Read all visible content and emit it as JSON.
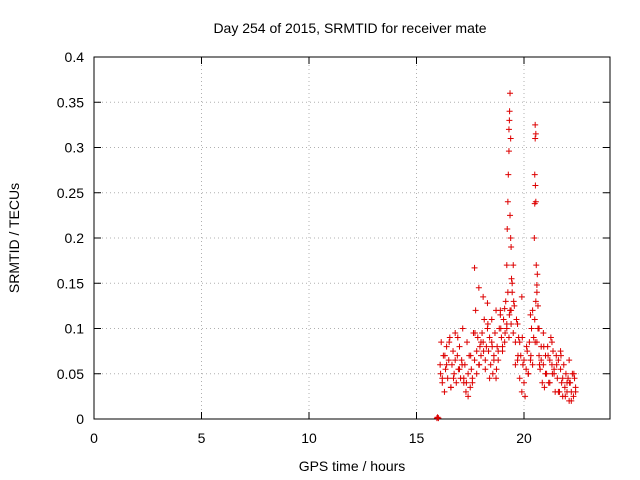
{
  "chart_data": {
    "type": "scatter",
    "title": "Day 254 of 2015, SRMTID for receiver mate",
    "xlabel": "GPS time / hours",
    "ylabel": "SRMTID / TECUs",
    "xlim": [
      0,
      24
    ],
    "ylim": [
      0,
      0.4
    ],
    "x_ticks": [
      0,
      5,
      10,
      15,
      20
    ],
    "x_tick_labels": [
      "0",
      "5",
      "10",
      "15",
      "20"
    ],
    "y_ticks": [
      0,
      0.05,
      0.1,
      0.15,
      0.2,
      0.25,
      0.3,
      0.35,
      0.4
    ],
    "y_tick_labels": [
      "0",
      "0.05",
      "0.1",
      "0.15",
      "0.2",
      "0.25",
      "0.3",
      "0.35",
      "0.4"
    ],
    "grid": true,
    "marker": "+",
    "colors": {
      "series": "#dd0000",
      "grid": "#b0b0b0",
      "axis": "#000000"
    },
    "series": [
      {
        "name": "SRMTID",
        "x": [
          15.95,
          15.98,
          16.02,
          16.1,
          16.15,
          16.2,
          16.25,
          16.3,
          16.35,
          16.4,
          16.45,
          16.5,
          16.55,
          16.6,
          16.65,
          16.7,
          16.75,
          16.8,
          16.85,
          16.9,
          16.95,
          17.0,
          17.05,
          17.1,
          17.15,
          17.2,
          17.25,
          17.3,
          17.35,
          17.4,
          17.45,
          17.5,
          17.55,
          17.6,
          17.65,
          17.7,
          17.75,
          17.8,
          17.85,
          17.9,
          17.95,
          18.0,
          18.05,
          18.1,
          18.15,
          18.2,
          18.25,
          18.3,
          18.35,
          18.4,
          18.45,
          18.5,
          18.55,
          18.6,
          18.65,
          18.7,
          18.75,
          18.8,
          18.85,
          18.9,
          18.95,
          19.0,
          19.05,
          19.1,
          19.15,
          19.2,
          19.25,
          19.3,
          19.35,
          19.4,
          19.45,
          19.5,
          19.55,
          19.6,
          19.65,
          19.7,
          19.75,
          19.8,
          19.85,
          19.9,
          19.95,
          20.0,
          20.05,
          20.1,
          20.15,
          20.2,
          20.25,
          20.3,
          20.35,
          20.4,
          20.45,
          20.5,
          20.55,
          20.6,
          20.65,
          20.7,
          20.75,
          20.8,
          20.85,
          20.9,
          20.95,
          21.0,
          21.05,
          21.1,
          21.15,
          21.2,
          21.25,
          21.3,
          21.35,
          21.4,
          21.45,
          21.5,
          21.55,
          21.6,
          21.65,
          21.7,
          21.75,
          21.8,
          21.85,
          21.9,
          21.95,
          22.0,
          22.05,
          22.1,
          22.15,
          22.2,
          22.25,
          22.3,
          22.35,
          22.4,
          16.2,
          16.4,
          16.6,
          16.8,
          17.0,
          17.2,
          17.4,
          17.6,
          17.8,
          18.0,
          18.2,
          18.4,
          18.6,
          18.8,
          19.0,
          19.2,
          19.4,
          19.6,
          19.8,
          20.0,
          20.2,
          20.4,
          20.6,
          20.8,
          21.0,
          21.2,
          21.4,
          21.6,
          21.8,
          22.0,
          22.2,
          22.4,
          16.12,
          16.32,
          16.52,
          16.72,
          16.92,
          17.12,
          17.32,
          17.52,
          17.72,
          17.92,
          18.12,
          18.32,
          18.52,
          18.72,
          18.92,
          19.12,
          19.32,
          19.52,
          19.72,
          19.92,
          20.12,
          20.32,
          20.52,
          20.72,
          20.92,
          21.12,
          21.32,
          21.52,
          21.72,
          21.92,
          22.12,
          22.32,
          19.2,
          19.22,
          19.25,
          19.27,
          19.3,
          19.3,
          19.32,
          19.33,
          19.35,
          19.35,
          19.38,
          19.38,
          19.4,
          19.42,
          19.45,
          20.48,
          20.5,
          20.5,
          20.52,
          20.52,
          20.53,
          20.55,
          20.55,
          20.57,
          20.6,
          20.62,
          20.65,
          17.7,
          17.9,
          18.1,
          18.3,
          18.5,
          18.7,
          18.9,
          19.1,
          19.5,
          19.7,
          19.9,
          20.3,
          20.7,
          20.9,
          21.3,
          21.7,
          22.1
        ],
        "y": [
          0.001,
          0.002,
          0.001,
          0.06,
          0.085,
          0.04,
          0.07,
          0.03,
          0.055,
          0.08,
          0.045,
          0.065,
          0.09,
          0.035,
          0.06,
          0.075,
          0.05,
          0.095,
          0.04,
          0.07,
          0.055,
          0.08,
          0.045,
          0.065,
          0.1,
          0.04,
          0.06,
          0.03,
          0.085,
          0.05,
          0.07,
          0.035,
          0.055,
          0.045,
          0.095,
          0.065,
          0.12,
          0.075,
          0.09,
          0.06,
          0.08,
          0.07,
          0.095,
          0.085,
          0.11,
          0.065,
          0.08,
          0.1,
          0.075,
          0.09,
          0.06,
          0.085,
          0.05,
          0.07,
          0.095,
          0.045,
          0.08,
          0.065,
          0.1,
          0.12,
          0.09,
          0.075,
          0.11,
          0.085,
          0.13,
          0.1,
          0.14,
          0.09,
          0.12,
          0.105,
          0.15,
          0.095,
          0.125,
          0.085,
          0.11,
          0.065,
          0.09,
          0.045,
          0.07,
          0.03,
          0.06,
          0.04,
          0.025,
          0.055,
          0.075,
          0.05,
          0.085,
          0.065,
          0.1,
          0.12,
          0.09,
          0.11,
          0.13,
          0.085,
          0.1,
          0.07,
          0.055,
          0.08,
          0.04,
          0.06,
          0.035,
          0.07,
          0.05,
          0.08,
          0.04,
          0.065,
          0.09,
          0.06,
          0.075,
          0.05,
          0.03,
          0.07,
          0.045,
          0.065,
          0.03,
          0.055,
          0.04,
          0.025,
          0.06,
          0.035,
          0.05,
          0.03,
          0.045,
          0.02,
          0.04,
          0.03,
          0.05,
          0.025,
          0.045,
          0.035,
          0.045,
          0.06,
          0.035,
          0.065,
          0.055,
          0.045,
          0.025,
          0.04,
          0.05,
          0.085,
          0.055,
          0.045,
          0.065,
          0.075,
          0.08,
          0.105,
          0.12,
          0.06,
          0.085,
          0.065,
          0.05,
          0.06,
          0.14,
          0.065,
          0.05,
          0.04,
          0.055,
          0.03,
          0.045,
          0.04,
          0.02,
          0.03,
          0.05,
          0.07,
          0.085,
          0.045,
          0.09,
          0.06,
          0.04,
          0.07,
          0.095,
          0.06,
          0.075,
          0.105,
          0.08,
          0.055,
          0.1,
          0.095,
          0.115,
          0.13,
          0.07,
          0.09,
          0.08,
          0.07,
          0.085,
          0.06,
          0.08,
          0.07,
          0.05,
          0.06,
          0.07,
          0.025,
          0.04,
          0.05,
          0.17,
          0.21,
          0.24,
          0.27,
          0.296,
          0.32,
          0.33,
          0.34,
          0.225,
          0.36,
          0.31,
          0.2,
          0.19,
          0.155,
          0.14,
          0.2,
          0.238,
          0.27,
          0.31,
          0.325,
          0.258,
          0.315,
          0.24,
          0.17,
          0.148,
          0.16,
          0.125,
          0.167,
          0.145,
          0.135,
          0.128,
          0.11,
          0.12,
          0.115,
          0.122,
          0.17,
          0.105,
          0.135,
          0.115,
          0.1,
          0.095,
          0.085,
          0.075,
          0.065
        ]
      }
    ]
  }
}
